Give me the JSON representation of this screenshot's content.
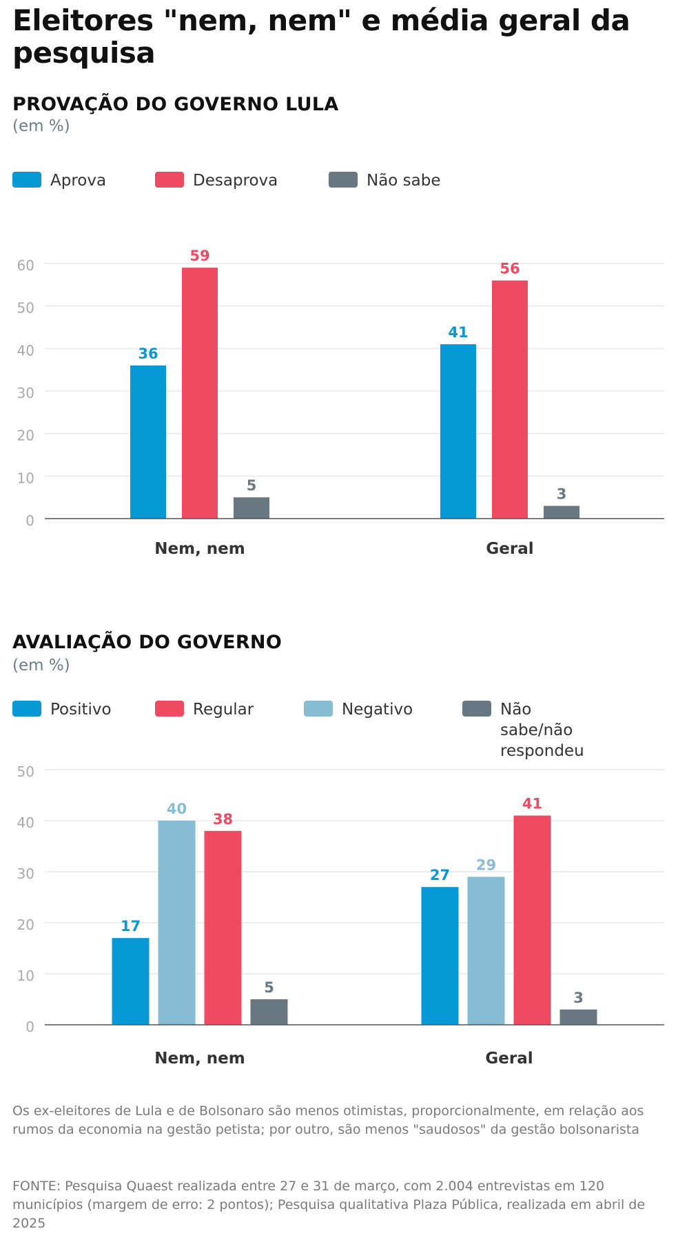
{
  "title": "Eleitores \"nem, nem\" e média geral da pesquisa",
  "colors": {
    "blue": "#0798d6",
    "red": "#ee4b63",
    "light_blue": "#86bdd3",
    "grey": "#677883",
    "grid": "#e8e8e8",
    "axis": "#555555",
    "tick": "#aaaaaa",
    "category": "#333333"
  },
  "chart_data": [
    {
      "type": "bar",
      "title": "PROVAÇÃO DO GOVERNO LULA",
      "subtitle": "(em %)",
      "categories": [
        "Nem, nem",
        "Geral"
      ],
      "series": [
        {
          "name": "Aprova",
          "color": "#0798d6",
          "values": [
            36,
            41
          ]
        },
        {
          "name": "Desaprova",
          "color": "#ee4b63",
          "values": [
            59,
            56
          ]
        },
        {
          "name": "Não sabe",
          "color": "#677883",
          "values": [
            5,
            3
          ]
        }
      ],
      "legend": [
        {
          "name": "Aprova",
          "color": "#0798d6"
        },
        {
          "name": "Desaprova",
          "color": "#ee4b63"
        },
        {
          "name": "Não sabe",
          "color": "#677883"
        }
      ],
      "yticks": [
        0,
        10,
        20,
        30,
        40,
        50,
        60
      ],
      "ylim": [
        0,
        60
      ],
      "xlabel": "",
      "ylabel": "",
      "grid": true,
      "legend_position": "top-left"
    },
    {
      "type": "bar",
      "title": "AVALIAÇÃO DO GOVERNO",
      "subtitle": "(em %)",
      "categories": [
        "Nem, nem",
        "Geral"
      ],
      "series": [
        {
          "name": "Positivo",
          "color": "#0798d6",
          "values": [
            17,
            27
          ]
        },
        {
          "name": "Negativo",
          "color": "#86bdd3",
          "values": [
            40,
            29
          ]
        },
        {
          "name": "Regular",
          "color": "#ee4b63",
          "values": [
            38,
            41
          ]
        },
        {
          "name": "Não sabe/não respondeu",
          "color": "#677883",
          "values": [
            5,
            3
          ]
        }
      ],
      "legend": [
        {
          "name": "Positivo",
          "color": "#0798d6"
        },
        {
          "name": "Regular",
          "color": "#ee4b63"
        },
        {
          "name": "Negativo",
          "color": "#86bdd3"
        },
        {
          "name": "Não sabe/não respondeu",
          "color": "#677883"
        }
      ],
      "yticks": [
        0,
        10,
        20,
        30,
        40,
        50
      ],
      "ylim": [
        0,
        50
      ],
      "xlabel": "",
      "ylabel": "",
      "grid": true,
      "legend_position": "top-left"
    }
  ],
  "footer": {
    "note": "Os ex-eleitores de Lula e de Bolsonaro são menos otimistas, proporcionalmente, em relação aos rumos da economia na gestão petista; por outro, são menos \"saudosos\" da gestão bolsonarista",
    "source": "FONTE: Pesquisa Quaest realizada entre 27 e 31 de março, com 2.004 entrevistas em 120 municípios (margem de erro: 2 pontos); Pesquisa qualitativa Plaza Pública, realizada em abril de 2025"
  }
}
